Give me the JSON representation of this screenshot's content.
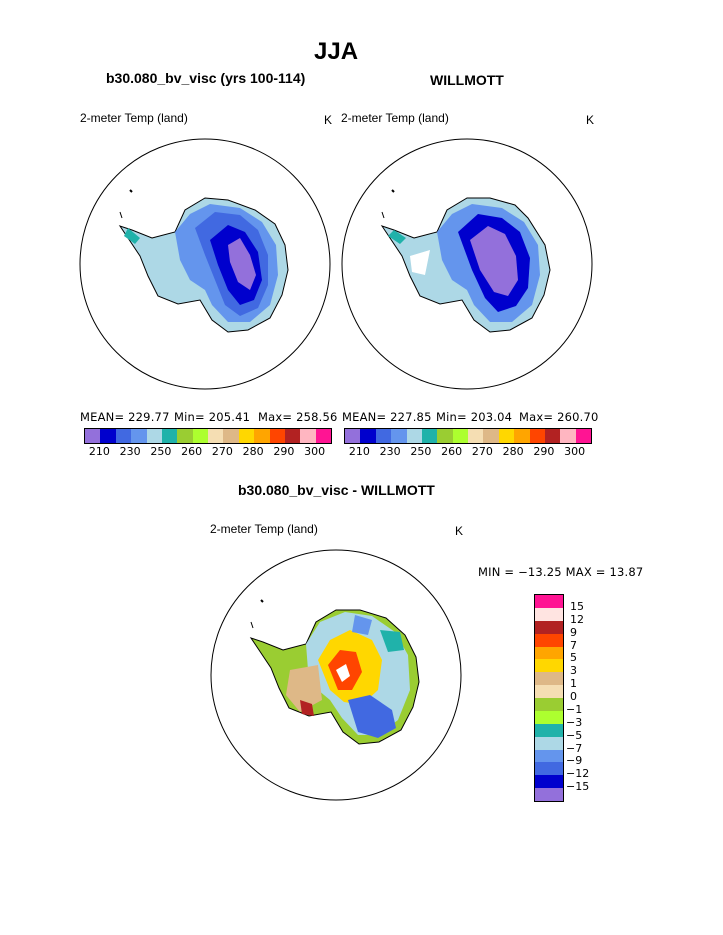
{
  "main_title": "JJA",
  "top_left": {
    "case_title": "b30.080_bv_visc (yrs 100-114)",
    "var_label": "2-meter Temp (land)",
    "units": "K",
    "mean": "MEAN= 229.77",
    "min": "Min= 205.41",
    "max": "Max= 258.56"
  },
  "top_right": {
    "case_title": "WILLMOTT",
    "var_label": "2-meter Temp (land)",
    "units": "K",
    "mean": "MEAN= 227.85",
    "min": "Min= 203.04",
    "max": "Max= 260.70"
  },
  "bottom": {
    "case_title": "b30.080_bv_visc - WILLMOTT",
    "var_label": "2-meter Temp (land)",
    "units": "K",
    "minmax": "MIN = −13.25 MAX =  13.87"
  },
  "colors": {
    "temp_scale": [
      "#9370db",
      "#0000cd",
      "#4169e1",
      "#6495ed",
      "#add8e6",
      "#20b2aa",
      "#9acd32",
      "#adff2f",
      "#f5deb3",
      "#deb887",
      "#ffd700",
      "#ffa500",
      "#ff4500",
      "#b22222",
      "#ffb6c1",
      "#ff1493"
    ],
    "diff_scale": [
      "#ff1493",
      "#ffe4e1",
      "#b22222",
      "#ff4500",
      "#ffa500",
      "#ffd700",
      "#deb887",
      "#f5deb3",
      "#9acd32",
      "#adff2f",
      "#20b2aa",
      "#add8e6",
      "#6495ed",
      "#4169e1",
      "#0000cd",
      "#9370db"
    ]
  },
  "chart_data": [
    {
      "type": "heatmap",
      "title": "b30.080_bv_visc (yrs 100-114)",
      "subtitle": "2-meter Temp (land)",
      "units": "K",
      "colorbar_ticks": [
        "210",
        "230",
        "250",
        "260",
        "270",
        "280",
        "290",
        "300"
      ],
      "stats": {
        "mean": 229.77,
        "min": 205.41,
        "max": 258.56
      }
    },
    {
      "type": "heatmap",
      "title": "WILLMOTT",
      "subtitle": "2-meter Temp (land)",
      "units": "K",
      "colorbar_ticks": [
        "210",
        "230",
        "250",
        "260",
        "270",
        "280",
        "290",
        "300"
      ],
      "stats": {
        "mean": 227.85,
        "min": 203.04,
        "max": 260.7
      }
    },
    {
      "type": "heatmap",
      "title": "b30.080_bv_visc - WILLMOTT",
      "subtitle": "2-meter Temp (land)",
      "units": "K",
      "colorbar_ticks": [
        "15",
        "12",
        "9",
        "7",
        "5",
        "3",
        "1",
        "0",
        "−1",
        "−3",
        "−5",
        "−7",
        "−9",
        "−12",
        "−15"
      ],
      "stats": {
        "min": -13.25,
        "max": 13.87
      }
    }
  ]
}
